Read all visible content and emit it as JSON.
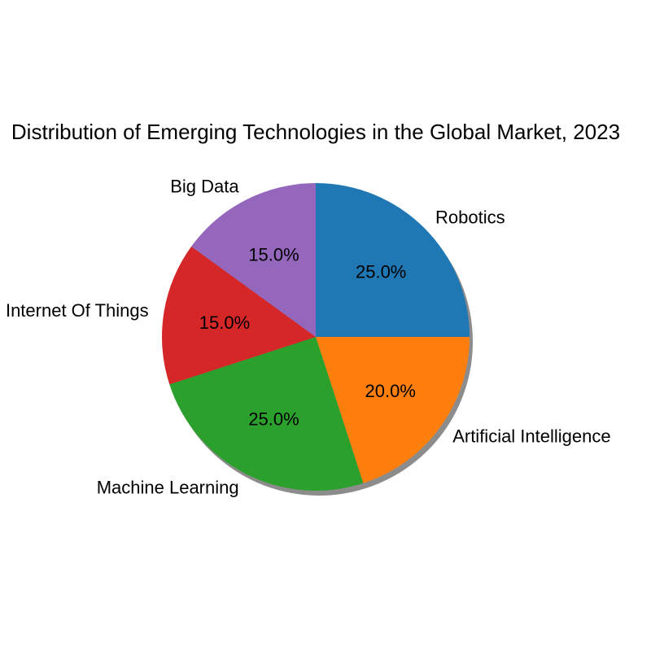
{
  "chart_data": {
    "type": "pie",
    "title": "Distribution of Emerging Technologies in the Global Market, 2023",
    "categories": [
      "Robotics",
      "Artificial Intelligence",
      "Machine Learning",
      "Internet Of Things",
      "Big Data"
    ],
    "values": [
      25.0,
      20.0,
      25.0,
      15.0,
      15.0
    ],
    "percent_labels": [
      "25.0%",
      "20.0%",
      "25.0%",
      "15.0%",
      "15.0%"
    ],
    "colors": [
      "#1f77b4",
      "#ff7f0e",
      "#2ca02c",
      "#d62728",
      "#9467bd"
    ],
    "start_angle_deg": 90,
    "direction": "clockwise",
    "shadow": true,
    "legend": "none"
  }
}
